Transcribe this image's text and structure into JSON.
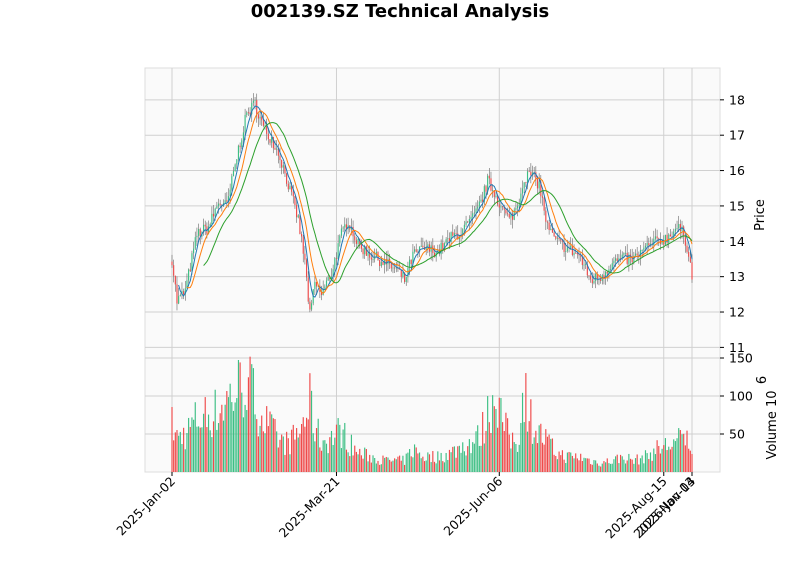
{
  "chart_data": {
    "type": "candlestick",
    "title": "002139.SZ Technical Analysis",
    "price_axis": {
      "label": "Price",
      "side": "right",
      "ylim": [
        10.7,
        18.9
      ],
      "ticks": [
        11,
        12,
        13,
        14,
        15,
        16,
        17,
        18
      ]
    },
    "volume_axis": {
      "label": "Volume  10",
      "exponent": "6",
      "side": "right",
      "ylim": [
        0,
        150
      ],
      "ticks": [
        50,
        100,
        150
      ]
    },
    "x_ticks": [
      "2025-Jan-02",
      "2025-Mar-21",
      "2025-Jun-06",
      "2025-Aug-15",
      "2025-Nov-03",
      "2026-Jan-14"
    ],
    "colors": {
      "up": "#3dbf84",
      "down": "#ef4a4a",
      "ma_fast": "#1f77b4",
      "ma_mid": "#ff7f0e",
      "ma_slow": "#2ca02c",
      "panel_bg": "#fafafa",
      "grid": "#d0d0d0"
    },
    "moving_averages": [
      "ma_fast",
      "ma_mid",
      "ma_slow"
    ],
    "grid": true,
    "anchors": [
      [
        0,
        13.5,
        62
      ],
      [
        3,
        12.3,
        45
      ],
      [
        8,
        12.6,
        50
      ],
      [
        15,
        14.2,
        70
      ],
      [
        22,
        14.4,
        75
      ],
      [
        28,
        15.1,
        80
      ],
      [
        33,
        15.0,
        95
      ],
      [
        40,
        16.6,
        110
      ],
      [
        45,
        17.6,
        120
      ],
      [
        50,
        17.9,
        95
      ],
      [
        55,
        17.2,
        70
      ],
      [
        60,
        16.9,
        55
      ],
      [
        65,
        16.4,
        40
      ],
      [
        70,
        15.6,
        38
      ],
      [
        76,
        14.6,
        50
      ],
      [
        80,
        13.4,
        70
      ],
      [
        83,
        11.9,
        90
      ],
      [
        86,
        12.8,
        60
      ],
      [
        90,
        12.5,
        40
      ],
      [
        96,
        13.1,
        45
      ],
      [
        102,
        14.2,
        55
      ],
      [
        106,
        14.6,
        40
      ],
      [
        112,
        13.9,
        25
      ],
      [
        120,
        13.6,
        20
      ],
      [
        128,
        13.4,
        15
      ],
      [
        135,
        13.2,
        15
      ],
      [
        140,
        12.9,
        15
      ],
      [
        145,
        13.6,
        30
      ],
      [
        152,
        13.8,
        20
      ],
      [
        160,
        13.7,
        20
      ],
      [
        168,
        14.1,
        25
      ],
      [
        175,
        14.3,
        35
      ],
      [
        182,
        14.7,
        40
      ],
      [
        186,
        15.1,
        50
      ],
      [
        190,
        15.7,
        75
      ],
      [
        195,
        15.3,
        110
      ],
      [
        199,
        14.9,
        65
      ],
      [
        203,
        14.6,
        45
      ],
      [
        208,
        15.0,
        40
      ],
      [
        212,
        15.8,
        110
      ],
      [
        216,
        15.9,
        70
      ],
      [
        221,
        15.6,
        50
      ],
      [
        226,
        14.4,
        40
      ],
      [
        231,
        14.0,
        25
      ],
      [
        238,
        13.8,
        20
      ],
      [
        245,
        13.6,
        20
      ],
      [
        252,
        12.9,
        15
      ],
      [
        258,
        13.0,
        12
      ],
      [
        265,
        13.4,
        15
      ],
      [
        272,
        13.5,
        20
      ],
      [
        278,
        13.5,
        15
      ],
      [
        285,
        13.8,
        20
      ],
      [
        292,
        14.0,
        30
      ],
      [
        298,
        14.1,
        35
      ],
      [
        304,
        14.4,
        40
      ],
      [
        308,
        14.2,
        45
      ],
      [
        311,
        13.7,
        40
      ],
      [
        313,
        13.0,
        35
      ]
    ]
  }
}
